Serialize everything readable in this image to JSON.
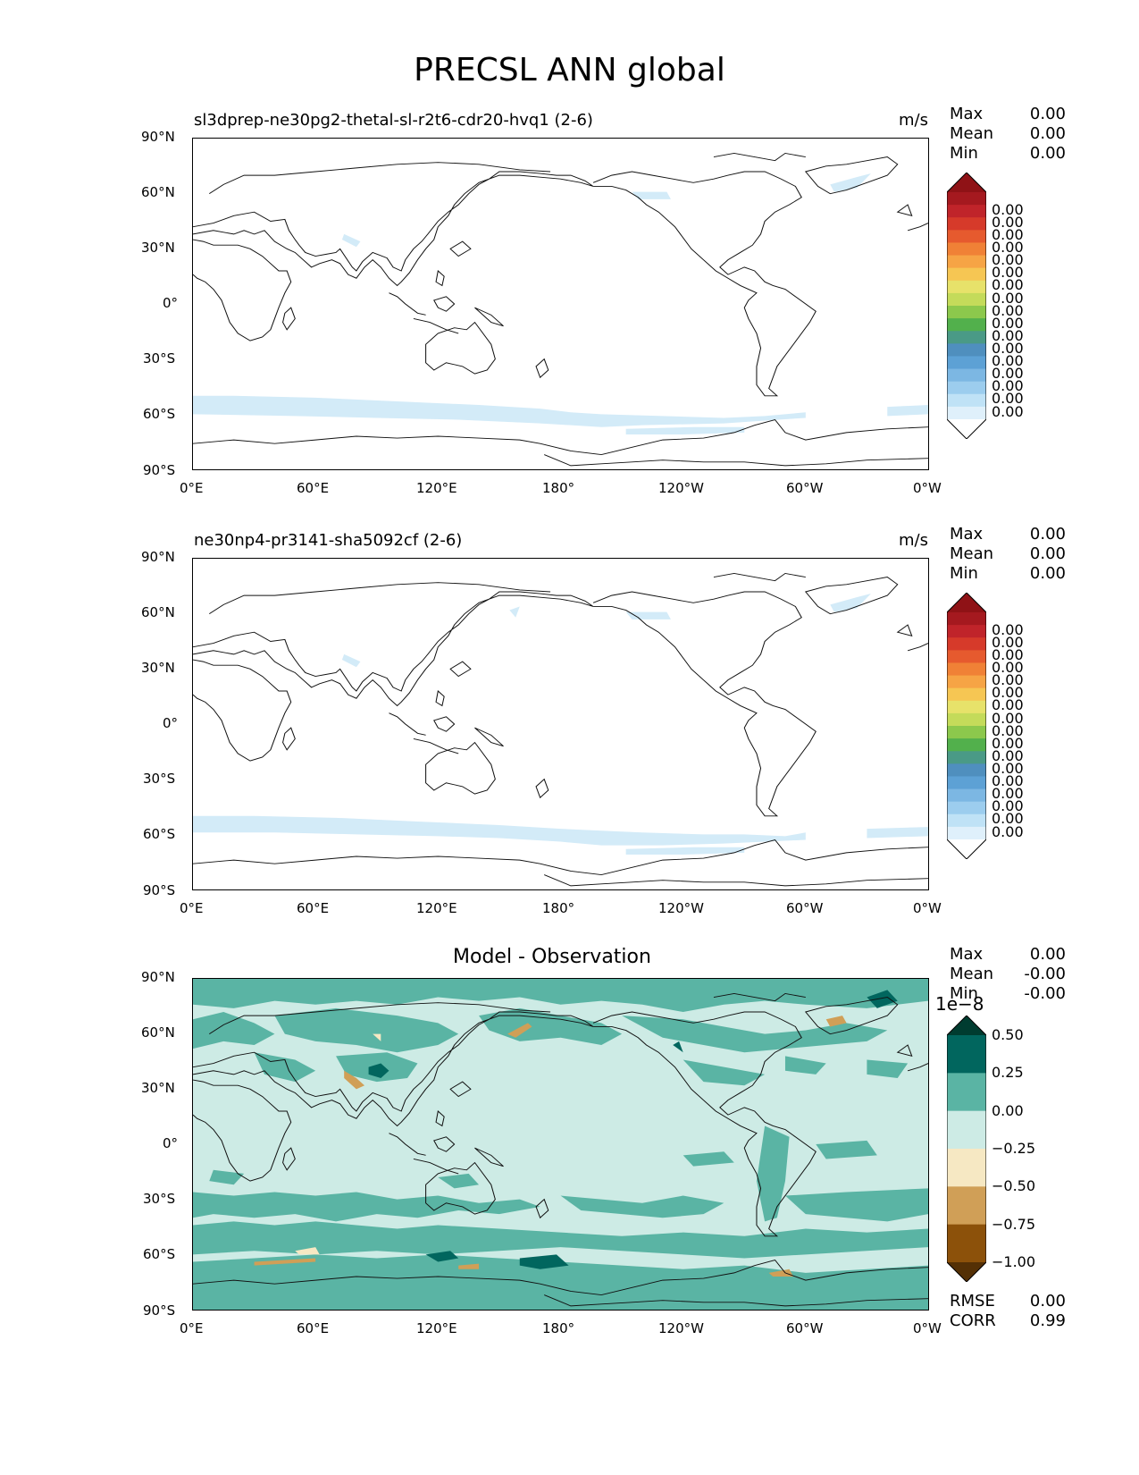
{
  "title": "PRECSL ANN global",
  "lat_ticks": [
    "90°N",
    "60°N",
    "30°N",
    "0°",
    "30°S",
    "60°S",
    "90°S"
  ],
  "lon_ticks": [
    "0°E",
    "60°E",
    "120°E",
    "180°",
    "120°W",
    "60°W",
    "0°W"
  ],
  "panels": [
    {
      "name": "test",
      "title": "sl3dprep-ne30pg2-thetal-sl-r2t6-cdr20-hvq1 (2-6)",
      "units": "m/s",
      "stats": {
        "max_label": "Max",
        "max": "0.00",
        "mean_label": "Mean",
        "mean": "0.00",
        "min_label": "Min",
        "min": "0.00"
      },
      "colorbar": {
        "colors": [
          "#ffffff",
          "#dff0fb",
          "#bfe2f6",
          "#9ccdee",
          "#7cb7e3",
          "#5da1d5",
          "#4f8fbe",
          "#4a9a86",
          "#52b04c",
          "#8cc84c",
          "#c4db5a",
          "#e7e26a",
          "#f6c653",
          "#f6a445",
          "#f08136",
          "#e65a2e",
          "#d63a2a",
          "#c0242a",
          "#a5191f",
          "#8f1216"
        ],
        "labels": [
          "0.00",
          "0.00",
          "0.00",
          "0.00",
          "0.00",
          "0.00",
          "0.00",
          "0.00",
          "0.00",
          "0.00",
          "0.00",
          "0.00",
          "0.00",
          "0.00",
          "0.00",
          "0.00",
          "0.00"
        ]
      }
    },
    {
      "name": "reference",
      "title": "ne30np4-pr3141-sha5092cf (2-6)",
      "units": "m/s",
      "stats": {
        "max_label": "Max",
        "max": "0.00",
        "mean_label": "Mean",
        "mean": "0.00",
        "min_label": "Min",
        "min": "0.00"
      },
      "colorbar": {
        "colors": [
          "#ffffff",
          "#dff0fb",
          "#bfe2f6",
          "#9ccdee",
          "#7cb7e3",
          "#5da1d5",
          "#4f8fbe",
          "#4a9a86",
          "#52b04c",
          "#8cc84c",
          "#c4db5a",
          "#e7e26a",
          "#f6c653",
          "#f6a445",
          "#f08136",
          "#e65a2e",
          "#d63a2a",
          "#c0242a",
          "#a5191f",
          "#8f1216"
        ],
        "labels": [
          "0.00",
          "0.00",
          "0.00",
          "0.00",
          "0.00",
          "0.00",
          "0.00",
          "0.00",
          "0.00",
          "0.00",
          "0.00",
          "0.00",
          "0.00",
          "0.00",
          "0.00",
          "0.00",
          "0.00"
        ]
      }
    },
    {
      "name": "difference",
      "title": "Model - Observation",
      "units": "",
      "stats": {
        "max_label": "Max",
        "max": "0.00",
        "mean_label": "Mean",
        "mean": "-0.00",
        "min_label": "Min",
        "min": "-0.00"
      },
      "scale_label": "1e−8",
      "colorbar": {
        "colors": [
          "#543005",
          "#8c510a",
          "#d09f57",
          "#f6e8c3",
          "#cdebe5",
          "#5ab4a4",
          "#01665e",
          "#003c30"
        ],
        "labels": [
          "0.50",
          "0.25",
          "0.00",
          "−0.25",
          "−0.50",
          "−0.75",
          "−1.00"
        ]
      },
      "rmse_label": "RMSE",
      "rmse": "0.00",
      "corr_label": "CORR",
      "corr": "0.99"
    }
  ]
}
